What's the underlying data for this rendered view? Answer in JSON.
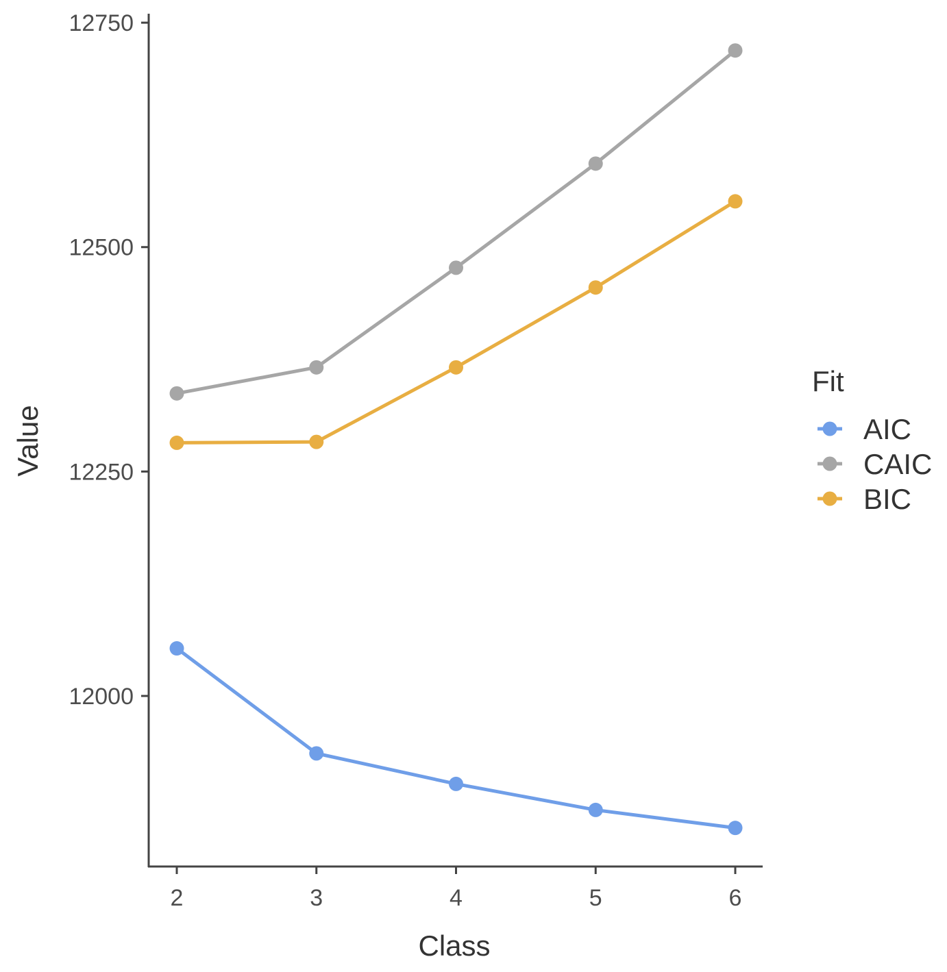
{
  "chart_data": {
    "type": "line",
    "title": "",
    "xlabel": "Class",
    "ylabel": "Value",
    "x": [
      2,
      3,
      4,
      5,
      6
    ],
    "xticks": [
      "2",
      "3",
      "4",
      "5",
      "6"
    ],
    "yticks": [
      12000,
      12250,
      12500,
      12750
    ],
    "ytick_labels": [
      "12000",
      "12250",
      "12500",
      "12750"
    ],
    "ylim": [
      11810,
      12760
    ],
    "grid": false,
    "legend": {
      "title": "Fit",
      "position": "right"
    },
    "series": [
      {
        "name": "AIC",
        "color": "#6f9ee8",
        "values": [
          12053,
          11936,
          11902,
          11873,
          11853
        ]
      },
      {
        "name": "CAIC",
        "color": "#a6a6a6",
        "values": [
          12337,
          12366,
          12477,
          12593,
          12719
        ]
      },
      {
        "name": "BIC",
        "color": "#e8ae42",
        "values": [
          12282,
          12283,
          12366,
          12455,
          12551
        ]
      }
    ]
  }
}
